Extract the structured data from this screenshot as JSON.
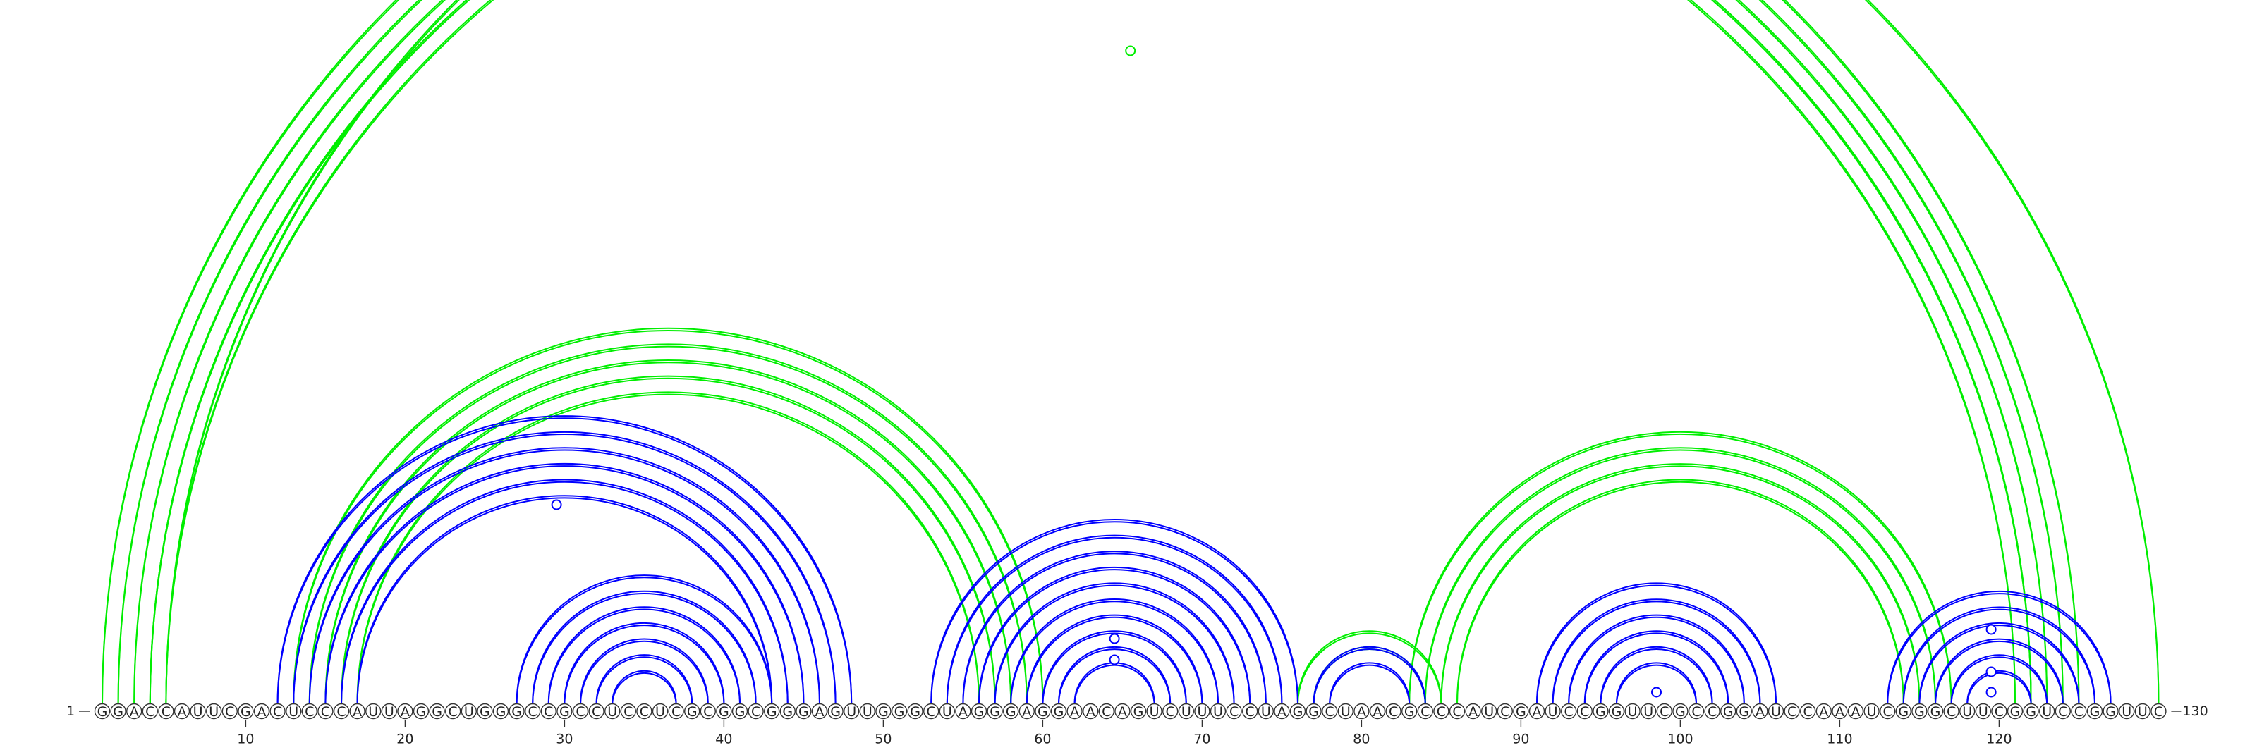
{
  "sequence": "GGACCAUUCGACUCCCAUUAGGCUGGGCCGCCUCCUCGCGGCGGGAGUUGGGCUAGGGAGGAACAGUCUUUCCUAGGCUAACGCCCAUCGAUCCGGUUCGCCGGAUCCAAAUCGGGCUUCGGUCCGGUUC",
  "start_label": "1",
  "end_label": "130",
  "tick_labels": [
    "10",
    "20",
    "30",
    "40",
    "50",
    "60",
    "70",
    "80",
    "90",
    "100",
    "110",
    "120"
  ],
  "colors": {
    "blue_pairs": "#0000ff",
    "green_pairs": "#00ee00"
  },
  "blue_helices": [
    {
      "i": 12,
      "j": 48,
      "len": 6
    },
    {
      "i": 27,
      "j": 43,
      "len": 7
    },
    {
      "i": 53,
      "j": 76,
      "len": 10
    },
    {
      "i": 77,
      "j": 84,
      "len": 2
    },
    {
      "i": 91,
      "j": 106,
      "len": 6
    },
    {
      "i": 113,
      "j": 127,
      "len": 6
    }
  ],
  "green_helices": [
    {
      "i": 1,
      "j": 125,
      "len": 4
    },
    {
      "i": 4,
      "j": 122,
      "len": 2
    },
    {
      "i": 5,
      "j": 130,
      "len": 1
    },
    {
      "i": 13,
      "j": 60,
      "len": 5
    },
    {
      "i": 76,
      "j": 85,
      "len": 2
    },
    {
      "i": 83,
      "j": 117,
      "len": 4
    }
  ],
  "blue_markers": [
    29.5,
    64.5,
    64.5,
    98.5,
    119.5,
    119.5,
    119.5
  ],
  "green_markers": [
    65.5
  ]
}
